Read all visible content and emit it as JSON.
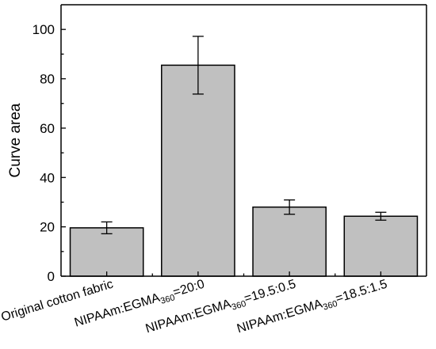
{
  "chart_data": {
    "type": "bar",
    "categories": [
      {
        "main": "Original cotton fabric",
        "sub": "",
        "suffix": ""
      },
      {
        "main": "NIPAAm:EGMA",
        "sub": "360",
        "suffix": "=20:0"
      },
      {
        "main": "NIPAAm:EGMA",
        "sub": "360",
        "suffix": "=19.5:0.5"
      },
      {
        "main": "NIPAAm:EGMA",
        "sub": "360",
        "suffix": "=18.5:1.5"
      }
    ],
    "values": [
      19.6,
      85.5,
      28.0,
      24.3
    ],
    "errors": [
      2.4,
      11.7,
      2.9,
      1.6
    ],
    "title": "",
    "xlabel": "",
    "ylabel": "Curve area",
    "ylim": [
      0,
      110
    ],
    "yticks": [
      0,
      20,
      40,
      60,
      80,
      100
    ],
    "grid": false,
    "bar_color": "#c0c0c0"
  }
}
